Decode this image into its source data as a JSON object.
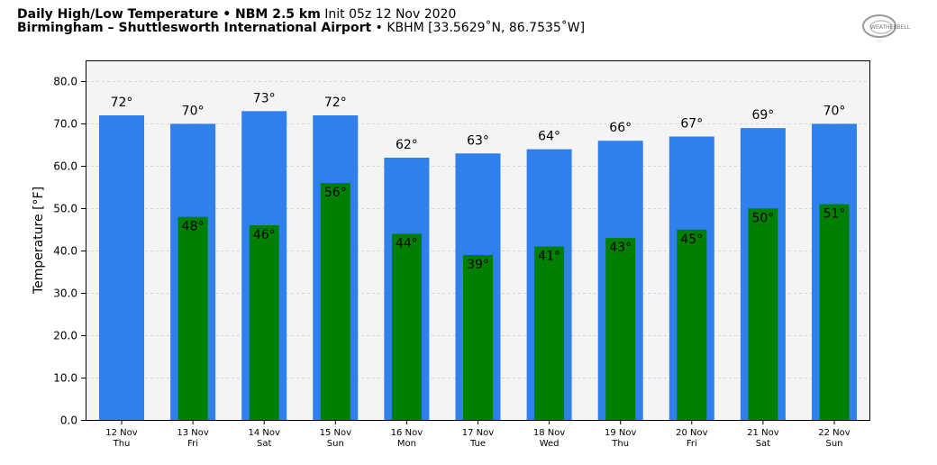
{
  "header": {
    "title_bold": "Daily High/Low Temperature • NBM 2.5 km",
    "init": "Init 05z 12 Nov 2020",
    "station_bold": "Birmingham – Shuttlesworth International Airport",
    "station_detail": "• KBHM [33.5629˚N, 86.7535˚W]"
  },
  "logo": {
    "text": "WEATHERBELL"
  },
  "chart_data": {
    "type": "bar",
    "ylabel": "Temperature [°F]",
    "ylim": [
      0,
      85
    ],
    "yticks": [
      0,
      10,
      20,
      30,
      40,
      50,
      60,
      70,
      80
    ],
    "ytick_labels": [
      "0.0",
      "10.0",
      "20.0",
      "30.0",
      "40.0",
      "50.0",
      "60.0",
      "70.0",
      "80.0"
    ],
    "grid": true,
    "categories": [
      "12 Nov",
      "13 Nov",
      "14 Nov",
      "15 Nov",
      "16 Nov",
      "17 Nov",
      "18 Nov",
      "19 Nov",
      "20 Nov",
      "21 Nov",
      "22 Nov"
    ],
    "weekdays": [
      "Thu",
      "Fri",
      "Sat",
      "Sun",
      "Mon",
      "Tue",
      "Wed",
      "Thu",
      "Fri",
      "Sat",
      "Sun"
    ],
    "series": [
      {
        "name": "High",
        "color": "#2f80ed",
        "values": [
          72,
          70,
          73,
          72,
          62,
          63,
          64,
          66,
          67,
          69,
          70
        ],
        "labels": [
          "72°",
          "70°",
          "73°",
          "72°",
          "62°",
          "63°",
          "64°",
          "66°",
          "67°",
          "69°",
          "70°"
        ]
      },
      {
        "name": "Low",
        "color": "#008000",
        "values": [
          null,
          48,
          46,
          56,
          44,
          39,
          41,
          43,
          45,
          50,
          51
        ],
        "labels": [
          "",
          "48°",
          "46°",
          "56°",
          "44°",
          "39°",
          "41°",
          "43°",
          "45°",
          "50°",
          "51°"
        ]
      }
    ]
  }
}
